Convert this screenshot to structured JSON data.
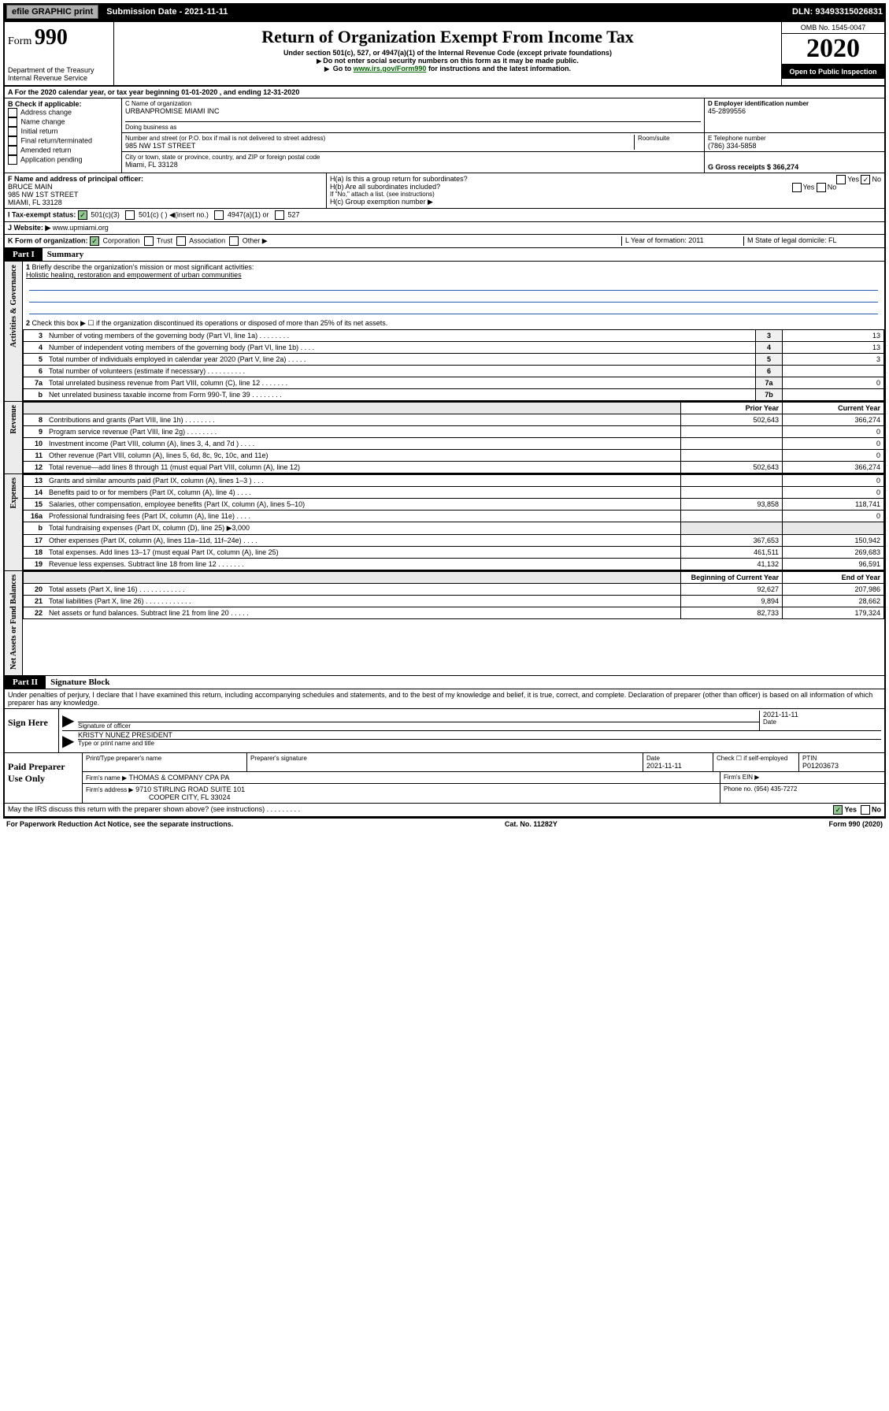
{
  "topbar": {
    "efile": "efile GRAPHIC print",
    "submission_label": "Submission Date - 2021-11-11",
    "dln": "DLN: 93493315026831"
  },
  "header": {
    "form_prefix": "Form",
    "form_number": "990",
    "dept": "Department of the Treasury",
    "irs": "Internal Revenue Service",
    "title": "Return of Organization Exempt From Income Tax",
    "subtitle": "Under section 501(c), 527, or 4947(a)(1) of the Internal Revenue Code (except private foundations)",
    "note1": "Do not enter social security numbers on this form as it may be made public.",
    "note2_pre": "Go to ",
    "note2_link": "www.irs.gov/Form990",
    "note2_post": " for instructions and the latest information.",
    "omb": "OMB No. 1545-0047",
    "year": "2020",
    "open": "Open to Public Inspection"
  },
  "row_a": "A   For the 2020 calendar year, or tax year beginning 01-01-2020    , and ending 12-31-2020",
  "checkboxes": {
    "b_label": "B Check if applicable:",
    "items": [
      "Address change",
      "Name change",
      "Initial return",
      "Final return/terminated",
      "Amended return",
      "Application pending"
    ]
  },
  "org": {
    "c_label": "C Name of organization",
    "name": "URBANPROMISE MIAMI INC",
    "dba_label": "Doing business as",
    "street_label": "Number and street (or P.O. box if mail is not delivered to street address)",
    "street": "985 NW 1ST STREET",
    "room_label": "Room/suite",
    "city_label": "City or town, state or province, country, and ZIP or foreign postal code",
    "city": "Miami, FL  33128"
  },
  "d": {
    "label": "D Employer identification number",
    "val": "45-2899556"
  },
  "e": {
    "label": "E Telephone number",
    "val": "(786) 334-5858"
  },
  "g": {
    "label": "G Gross receipts $ 366,274"
  },
  "f": {
    "label": "F  Name and address of principal officer:",
    "name": "BRUCE MAIN",
    "street": "985 NW 1ST STREET",
    "city": "MIAMI, FL  33128"
  },
  "h": {
    "ha": "H(a)  Is this a group return for subordinates?",
    "hb": "H(b)  Are all subordinates included?",
    "hb_note": "If \"No,\" attach a list. (see instructions)",
    "hc": "H(c)  Group exemption number ▶"
  },
  "i": {
    "label": "I   Tax-exempt status:",
    "opts": [
      "501(c)(3)",
      "501(c) (  ) ◀(insert no.)",
      "4947(a)(1) or",
      "527"
    ]
  },
  "j": {
    "label": "J   Website: ▶",
    "val": "www.upmiami.org"
  },
  "k": {
    "label": "K Form of organization:",
    "opts": [
      "Corporation",
      "Trust",
      "Association",
      "Other ▶"
    ]
  },
  "l": {
    "label": "L Year of formation: 2011"
  },
  "m": {
    "label": "M State of legal domicile: FL"
  },
  "part1": {
    "label": "Part I",
    "title": "Summary"
  },
  "summary": {
    "q1": "Briefly describe the organization's mission or most significant activities:",
    "mission": "Holistic healing, restoration and empowerment of urban communities",
    "q2": "Check this box ▶ ☐  if the organization discontinued its operations or disposed of more than 25% of its net assets.",
    "rows_gov": [
      {
        "n": "3",
        "d": "Number of voting members of the governing body (Part VI, line 1a)   .   .   .   .   .   .   .   .",
        "b": "3",
        "v": "13"
      },
      {
        "n": "4",
        "d": "Number of independent voting members of the governing body (Part VI, line 1b)   .   .   .   .",
        "b": "4",
        "v": "13"
      },
      {
        "n": "5",
        "d": "Total number of individuals employed in calendar year 2020 (Part V, line 2a)   .   .   .   .   .",
        "b": "5",
        "v": "3"
      },
      {
        "n": "6",
        "d": "Total number of volunteers (estimate if necessary)   .   .   .   .   .   .   .   .   .   .",
        "b": "6",
        "v": ""
      },
      {
        "n": "7a",
        "d": "Total unrelated business revenue from Part VIII, column (C), line 12   .   .   .   .   .   .   .",
        "b": "7a",
        "v": "0"
      },
      {
        "n": "b",
        "d": "Net unrelated business taxable income from Form 990-T, line 39   .   .   .   .   .   .   .   .",
        "b": "7b",
        "v": ""
      }
    ],
    "hdr_prior": "Prior Year",
    "hdr_curr": "Current Year",
    "rows_rev": [
      {
        "n": "8",
        "d": "Contributions and grants (Part VIII, line 1h)   .   .   .   .   .   .   .   .",
        "p": "502,643",
        "c": "366,274"
      },
      {
        "n": "9",
        "d": "Program service revenue (Part VIII, line 2g)   .   .   .   .   .   .   .   .",
        "p": "",
        "c": "0"
      },
      {
        "n": "10",
        "d": "Investment income (Part VIII, column (A), lines 3, 4, and 7d )   .   .   .   .",
        "p": "",
        "c": "0"
      },
      {
        "n": "11",
        "d": "Other revenue (Part VIII, column (A), lines 5, 6d, 8c, 9c, 10c, and 11e)",
        "p": "",
        "c": "0"
      },
      {
        "n": "12",
        "d": "Total revenue—add lines 8 through 11 (must equal Part VIII, column (A), line 12)",
        "p": "502,643",
        "c": "366,274"
      }
    ],
    "rows_exp": [
      {
        "n": "13",
        "d": "Grants and similar amounts paid (Part IX, column (A), lines 1–3 )   .   .   .",
        "p": "",
        "c": "0"
      },
      {
        "n": "14",
        "d": "Benefits paid to or for members (Part IX, column (A), line 4)   .   .   .   .",
        "p": "",
        "c": "0"
      },
      {
        "n": "15",
        "d": "Salaries, other compensation, employee benefits (Part IX, column (A), lines 5–10)",
        "p": "93,858",
        "c": "118,741"
      },
      {
        "n": "16a",
        "d": "Professional fundraising fees (Part IX, column (A), line 11e)   .   .   .   .",
        "p": "",
        "c": "0"
      },
      {
        "n": "b",
        "d": "Total fundraising expenses (Part IX, column (D), line 25) ▶3,000",
        "p": "__GREY__",
        "c": "__GREY__"
      },
      {
        "n": "17",
        "d": "Other expenses (Part IX, column (A), lines 11a–11d, 11f–24e)   .   .   .   .",
        "p": "367,653",
        "c": "150,942"
      },
      {
        "n": "18",
        "d": "Total expenses. Add lines 13–17 (must equal Part IX, column (A), line 25)",
        "p": "461,511",
        "c": "269,683"
      },
      {
        "n": "19",
        "d": "Revenue less expenses. Subtract line 18 from line 12   .   .   .   .   .   .   .",
        "p": "41,132",
        "c": "96,591"
      }
    ],
    "hdr_beg": "Beginning of Current Year",
    "hdr_end": "End of Year",
    "rows_net": [
      {
        "n": "20",
        "d": "Total assets (Part X, line 16)   .   .   .   .   .   .   .   .   .   .   .   .",
        "p": "92,627",
        "c": "207,986"
      },
      {
        "n": "21",
        "d": "Total liabilities (Part X, line 26)   .   .   .   .   .   .   .   .   .   .   .   .",
        "p": "9,894",
        "c": "28,662"
      },
      {
        "n": "22",
        "d": "Net assets or fund balances. Subtract line 21 from line 20   .   .   .   .   .",
        "p": "82,733",
        "c": "179,324"
      }
    ],
    "vtabs": [
      "Activities & Governance",
      "Revenue",
      "Expenses",
      "Net Assets or Fund Balances"
    ]
  },
  "part2": {
    "label": "Part II",
    "title": "Signature Block"
  },
  "perjury": "Under penalties of perjury, I declare that I have examined this return, including accompanying schedules and statements, and to the best of my knowledge and belief, it is true, correct, and complete. Declaration of preparer (other than officer) is based on all information of which preparer has any knowledge.",
  "sign": {
    "label": "Sign Here",
    "sig_label": "Signature of officer",
    "date": "2021-11-11",
    "date_label": "Date",
    "name": "KRISTY NUNEZ  PRESIDENT",
    "name_label": "Type or print name and title"
  },
  "preparer": {
    "label": "Paid Preparer Use Only",
    "h1": "Print/Type preparer's name",
    "h2": "Preparer's signature",
    "h3": "Date",
    "h3v": "2021-11-11",
    "h4": "Check ☐ if self-employed",
    "h5": "PTIN",
    "h5v": "P01203673",
    "firm_label": "Firm's name     ▶",
    "firm": "THOMAS & COMPANY CPA PA",
    "ein_label": "Firm's EIN ▶",
    "addr_label": "Firm's address ▶",
    "addr1": "9710 STIRLING ROAD SUITE 101",
    "addr2": "COOPER CITY, FL  33024",
    "phone_label": "Phone no. (954) 435-7272"
  },
  "discuss": "May the IRS discuss this return with the preparer shown above? (see instructions)    .   .   .   .   .   .   .   .   .",
  "footer": {
    "left": "For Paperwork Reduction Act Notice, see the separate instructions.",
    "mid": "Cat. No. 11282Y",
    "right": "Form 990 (2020)"
  }
}
